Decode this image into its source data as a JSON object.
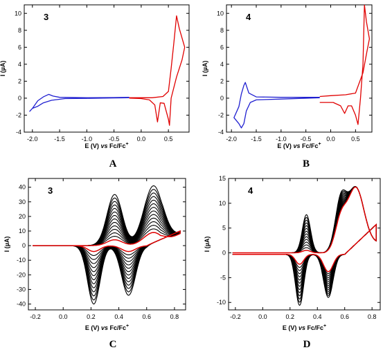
{
  "figure": {
    "panels": [
      "A",
      "B",
      "C",
      "D"
    ]
  },
  "chart_data": [
    {
      "panel": "A",
      "type": "line",
      "compound": "3",
      "xlabel": "E (V)",
      "xlabel_vs": "vs",
      "xlabel_ref": "Fc/Fc",
      "xlabel_sup": "+",
      "ylabel": "I (µA)",
      "xlim": [
        -2.15,
        0.88
      ],
      "ylim": [
        -4,
        11
      ],
      "xticks": [
        -2.0,
        -1.5,
        -1.0,
        -0.5,
        0.0,
        0.5
      ],
      "xtick_labels": [
        "-2.0",
        "-1.5",
        "-1.0",
        "-0.5",
        "0.0",
        "0.5"
      ],
      "yticks": [
        -4,
        -2,
        0,
        2,
        4,
        6,
        8,
        10
      ],
      "series": [
        {
          "color": "#1f1fd0",
          "points": [
            [
              -0.22,
              0.05
            ],
            [
              -0.5,
              0.03
            ],
            [
              -1.0,
              -0.02
            ],
            [
              -1.4,
              -0.05
            ],
            [
              -1.65,
              -0.25
            ],
            [
              -1.8,
              -0.55
            ],
            [
              -1.9,
              -0.95
            ],
            [
              -2.0,
              -1.2
            ],
            [
              -2.05,
              -1.55
            ],
            [
              -2.0,
              -1.2
            ],
            [
              -1.9,
              -0.3
            ],
            [
              -1.8,
              0.15
            ],
            [
              -1.7,
              0.45
            ],
            [
              -1.62,
              0.25
            ],
            [
              -1.5,
              0.1
            ],
            [
              -1.0,
              0.05
            ],
            [
              -0.5,
              0.08
            ],
            [
              -0.22,
              0.1
            ]
          ]
        },
        {
          "color": "#e00000",
          "points": [
            [
              -0.22,
              0.05
            ],
            [
              0.2,
              0.05
            ],
            [
              0.4,
              0.2
            ],
            [
              0.5,
              0.8
            ],
            [
              0.55,
              3.5
            ],
            [
              0.6,
              6.5
            ],
            [
              0.65,
              9.7
            ],
            [
              0.7,
              8.2
            ],
            [
              0.8,
              6.0
            ],
            [
              0.75,
              4.5
            ],
            [
              0.65,
              2.5
            ],
            [
              0.55,
              0.0
            ],
            [
              0.52,
              -3.2
            ],
            [
              0.5,
              -2.5
            ],
            [
              0.42,
              -0.6
            ],
            [
              0.35,
              -0.55
            ],
            [
              0.3,
              -2.8
            ],
            [
              0.25,
              -0.8
            ],
            [
              0.15,
              -0.2
            ],
            [
              0.0,
              -0.05
            ],
            [
              -0.22,
              0.0
            ]
          ]
        }
      ]
    },
    {
      "panel": "B",
      "type": "line",
      "compound": "4",
      "xlabel": "E (V)",
      "xlabel_vs": "vs",
      "xlabel_ref": "Fc/Fc",
      "xlabel_sup": "+",
      "ylabel": "I (µA)",
      "xlim": [
        -2.1,
        0.83
      ],
      "ylim": [
        -4,
        11
      ],
      "xticks": [
        -2.0,
        -1.5,
        -1.0,
        -0.5,
        0.0,
        0.5
      ],
      "xtick_labels": [
        "-2.0",
        "-1.5",
        "-1.0",
        "-0.5",
        "0.0",
        "0.5"
      ],
      "yticks": [
        -4,
        -2,
        0,
        2,
        4,
        6,
        8,
        10
      ],
      "series": [
        {
          "color": "#1f1fd0",
          "points": [
            [
              -0.22,
              0.05
            ],
            [
              -1.0,
              -0.1
            ],
            [
              -1.5,
              -0.2
            ],
            [
              -1.62,
              -0.5
            ],
            [
              -1.7,
              -1.5
            ],
            [
              -1.75,
              -3.0
            ],
            [
              -1.8,
              -3.5
            ],
            [
              -1.85,
              -3.0
            ],
            [
              -1.95,
              -2.3
            ],
            [
              -1.85,
              -1.0
            ],
            [
              -1.8,
              0.5
            ],
            [
              -1.75,
              1.5
            ],
            [
              -1.72,
              1.85
            ],
            [
              -1.65,
              0.6
            ],
            [
              -1.5,
              0.15
            ],
            [
              -1.0,
              0.1
            ],
            [
              -0.22,
              0.1
            ]
          ]
        },
        {
          "color": "#e00000",
          "points": [
            [
              -0.22,
              -0.5
            ],
            [
              0.05,
              -0.5
            ],
            [
              0.2,
              -0.9
            ],
            [
              0.28,
              -1.8
            ],
            [
              0.35,
              -0.9
            ],
            [
              0.42,
              -0.9
            ],
            [
              0.5,
              -2.0
            ],
            [
              0.55,
              -3.1
            ],
            [
              0.6,
              0.0
            ],
            [
              0.65,
              4.0
            ],
            [
              0.68,
              11.0
            ],
            [
              0.72,
              9.0
            ],
            [
              0.78,
              7.0
            ],
            [
              0.73,
              5.5
            ],
            [
              0.65,
              3.0
            ],
            [
              0.5,
              0.6
            ],
            [
              0.3,
              0.4
            ],
            [
              0.0,
              0.3
            ],
            [
              -0.22,
              0.2
            ]
          ]
        }
      ]
    },
    {
      "panel": "C",
      "type": "line",
      "compound": "3",
      "xlabel": "E (V)",
      "xlabel_vs": "vs",
      "xlabel_ref": "Fc/Fc",
      "xlabel_sup": "+",
      "ylabel": "I (µA)",
      "xlim": [
        -0.25,
        0.88
      ],
      "ylim": [
        -44,
        46
      ],
      "xticks": [
        -0.2,
        0.0,
        0.2,
        0.4,
        0.6,
        0.8
      ],
      "xtick_labels": [
        "-0.2",
        "0.0",
        "0.2",
        "0.4",
        "0.6",
        "0.8"
      ],
      "yticks": [
        -40,
        -30,
        -20,
        -10,
        0,
        10,
        20,
        30,
        40
      ],
      "scan_count": 14,
      "scan_color": "#000000",
      "scan_first_color": "#e00000",
      "scan_peak_ranges": {
        "anodic_1": [
          4,
          35
        ],
        "anodic_2": [
          9,
          41
        ],
        "cathodic_1": [
          4,
          40
        ],
        "cathodic_2": [
          4,
          34
        ]
      }
    },
    {
      "panel": "D",
      "type": "line",
      "compound": "4",
      "xlabel": "E (V)",
      "xlabel_vs": "vs",
      "xlabel_ref": "Fc/Fc",
      "xlabel_sup": "+",
      "ylabel": "I (µA)",
      "xlim": [
        -0.25,
        0.86
      ],
      "ylim": [
        -11.5,
        15
      ],
      "xticks": [
        -0.2,
        0.0,
        0.2,
        0.4,
        0.6,
        0.8
      ],
      "xtick_labels": [
        "-0.2",
        "0.0",
        "0.2",
        "0.4",
        "0.6",
        "0.8"
      ],
      "yticks": [
        -10,
        -5,
        0,
        5,
        10,
        15
      ],
      "scan_count": 14,
      "scan_color": "#000000",
      "scan_first_color": "#e00000",
      "scan_peak_ranges": {
        "anodic_1": [
          0.5,
          7.7
        ],
        "anodic_2": [
          5.5,
          9.2
        ],
        "cathodic_1": [
          2.0,
          10.3
        ],
        "cathodic_2": [
          3.5,
          8.7
        ]
      }
    }
  ]
}
